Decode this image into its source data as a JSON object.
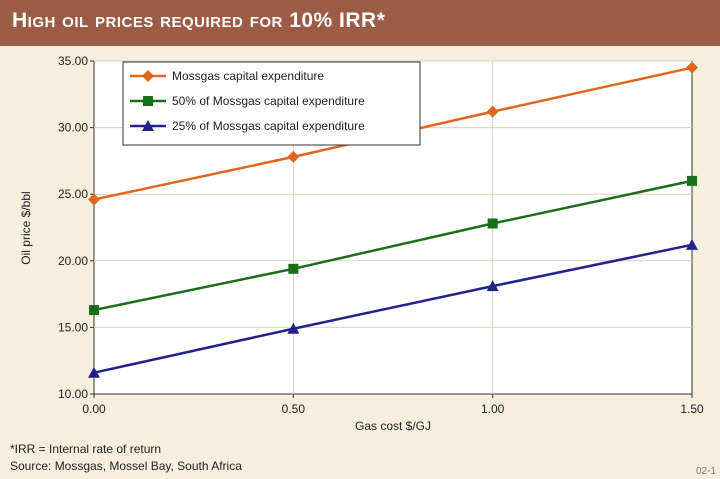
{
  "header": {
    "title": "High oil prices required for 10% IRR*"
  },
  "chart_data": {
    "type": "line",
    "xlabel": "Gas cost $/GJ",
    "ylabel": "Oil price $/bbl",
    "x": [
      0.0,
      0.5,
      1.0,
      1.5
    ],
    "x_ticks": [
      "0.00",
      "0.50",
      "1.00",
      "1.50"
    ],
    "y_ticks": [
      "10.00",
      "15.00",
      "20.00",
      "25.00",
      "30.00",
      "35.00"
    ],
    "xlim": [
      0,
      1.5
    ],
    "ylim": [
      10,
      35
    ],
    "grid": true,
    "legend_position": "top-left",
    "series": [
      {
        "name": "Mossgas capital expenditure",
        "values": [
          24.6,
          27.8,
          31.2,
          34.5
        ],
        "color": "#e0661f",
        "marker": "diamond"
      },
      {
        "name": "50% of Mossgas capital expenditure",
        "values": [
          16.3,
          19.4,
          22.8,
          26.0
        ],
        "color": "#1a6e1a",
        "marker": "square"
      },
      {
        "name": "25% of Mossgas capital expenditure",
        "values": [
          11.6,
          14.9,
          18.1,
          21.2
        ],
        "color": "#22228a",
        "marker": "triangle"
      }
    ]
  },
  "footnotes": {
    "irr_note": "*IRR = Internal rate of return",
    "source": "Source: Mossgas, Mossel Bay, South Africa"
  },
  "figure_code": "02-1"
}
